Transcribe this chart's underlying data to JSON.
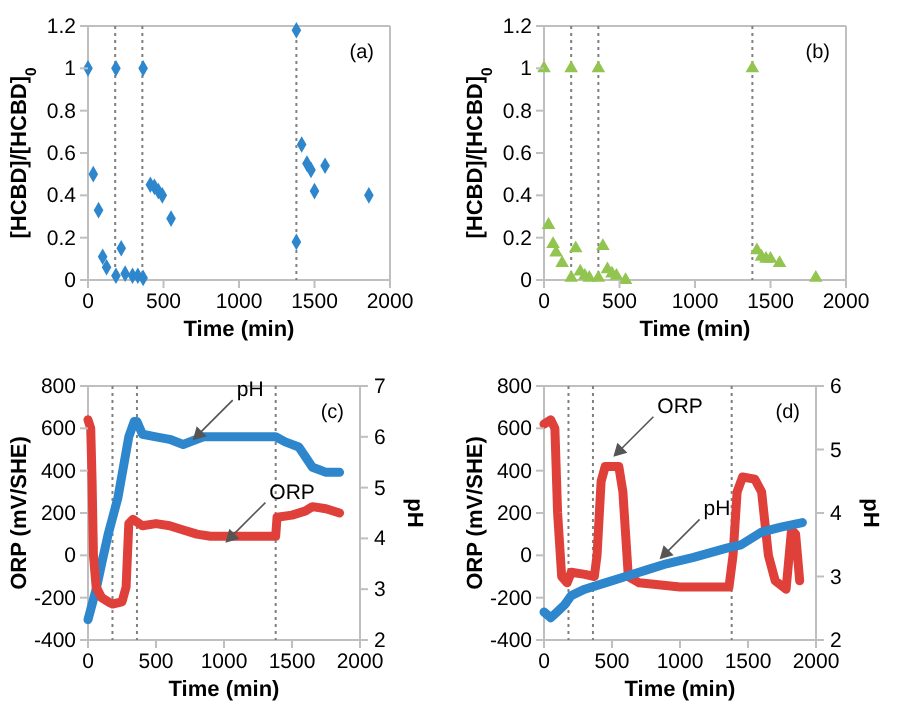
{
  "chart_data": [
    {
      "type": "scatter",
      "xlabel": "Time (min)",
      "ylabel": "[HCBD]/[HCBD]$_{0}$",
      "marker": "diamond",
      "xlim": [
        0,
        2000
      ],
      "xticks": [
        0,
        500,
        1000,
        1500,
        2000
      ],
      "ylim": [
        0,
        1.2
      ],
      "yticks": [
        0,
        0.2,
        0.4,
        0.6,
        0.8,
        1,
        1.2
      ],
      "ref_lines": [
        {
          "axis": "x",
          "value": 180,
          "color": "#808080",
          "line_style": "dotted"
        },
        {
          "axis": "x",
          "value": 360,
          "color": "#808080",
          "line_style": "dotted"
        },
        {
          "axis": "x",
          "value": 1380,
          "color": "#808080",
          "line_style": "dotted"
        }
      ],
      "annotations": [
        "(a)"
      ],
      "series": [
        {
          "color": "#2e86cc",
          "x": [
            0,
            35,
            70,
            97,
            123,
            185,
            185,
            220,
            246,
            295,
            330,
            365,
            365,
            413,
            440,
            466,
            492,
            550,
            1380,
            1380,
            1415,
            1450,
            1477,
            1500,
            1570,
            1860
          ],
          "values": [
            1,
            0.5,
            0.33,
            0.11,
            0.06,
            0.02,
            1,
            0.15,
            0.03,
            0.02,
            0.02,
            0.01,
            1,
            0.45,
            0.44,
            0.42,
            0.4,
            0.29,
            0.18,
            1.18,
            0.64,
            0.55,
            0.52,
            0.42,
            0.54,
            0.4
          ]
        }
      ]
    },
    {
      "type": "scatter",
      "xlabel": "Time (min)",
      "ylabel": "[HCBD]/[HCBD]$_{0}$",
      "marker": "triangle",
      "xlim": [
        0,
        2000
      ],
      "xticks": [
        0,
        500,
        1000,
        1500,
        2000
      ],
      "ylim": [
        0,
        1.2
      ],
      "yticks": [
        0,
        0.2,
        0.4,
        0.6,
        0.8,
        1,
        1.2
      ],
      "ref_lines": [
        {
          "axis": "x",
          "value": 180,
          "color": "#808080",
          "line_style": "dotted"
        },
        {
          "axis": "x",
          "value": 360,
          "color": "#808080",
          "line_style": "dotted"
        },
        {
          "axis": "x",
          "value": 1380,
          "color": "#808080",
          "line_style": "dotted"
        }
      ],
      "annotations": [
        "(b)"
      ],
      "series": [
        {
          "color": "#92c450",
          "x": [
            0,
            30,
            60,
            80,
            120,
            180,
            180,
            210,
            240,
            270,
            300,
            360,
            360,
            390,
            420,
            450,
            480,
            540,
            1380,
            1410,
            1440,
            1470,
            1500,
            1560,
            1800
          ],
          "values": [
            1,
            0.26,
            0.17,
            0.13,
            0.08,
            0.01,
            1,
            0.15,
            0.04,
            0.02,
            0.01,
            0.01,
            1,
            0.16,
            0.05,
            0.03,
            0.02,
            0,
            1,
            0.14,
            0.11,
            0.1,
            0.1,
            0.08,
            0.01
          ]
        }
      ]
    },
    {
      "type": "line",
      "xlabel": "Time (min)",
      "ylabel": "ORP (mV/SHE)",
      "y2label": "pH",
      "marker": "none",
      "line_style": "solid",
      "xlim": [
        0,
        2000
      ],
      "xticks": [
        0,
        500,
        1000,
        1500,
        2000
      ],
      "ylim": [
        -400,
        800
      ],
      "yticks": [
        -400,
        -200,
        0,
        200,
        400,
        600,
        800
      ],
      "y2lim": [
        2,
        7
      ],
      "y2ticks": [
        2,
        3,
        4,
        5,
        6,
        7
      ],
      "ref_lines": [
        {
          "axis": "x",
          "value": 180,
          "color": "#808080",
          "line_style": "dotted"
        },
        {
          "axis": "x",
          "value": 360,
          "color": "#808080",
          "line_style": "dotted"
        },
        {
          "axis": "x",
          "value": 1380,
          "color": "#808080",
          "line_style": "dotted"
        }
      ],
      "annotations": [
        "(c)",
        {
          "text": "pH",
          "x": 770,
          "y": 544
        },
        {
          "text": "ORP",
          "x": 1010,
          "y": 60
        }
      ],
      "series": [
        {
          "color": "#2e86cc",
          "axis": "y2",
          "x": [
            0,
            20,
            60,
            100,
            150,
            180,
            220,
            260,
            300,
            340,
            360,
            400,
            500,
            600,
            700,
            800,
            850,
            900,
            1000,
            1100,
            1200,
            1300,
            1380,
            1450,
            1550,
            1600,
            1650,
            1700,
            1750,
            1850
          ],
          "values": [
            2.4,
            2.6,
            3.0,
            3.5,
            4.1,
            4.4,
            4.8,
            5.4,
            6.0,
            6.3,
            6.3,
            6.05,
            6.0,
            5.95,
            5.85,
            5.95,
            6.0,
            6.0,
            6.0,
            6.0,
            6.0,
            6.0,
            6.0,
            5.9,
            5.8,
            5.6,
            5.4,
            5.35,
            5.3,
            5.3
          ]
        },
        {
          "color": "#e0403a",
          "x": [
            0,
            20,
            30,
            40,
            60,
            100,
            150,
            180,
            250,
            280,
            300,
            330,
            400,
            500,
            600,
            700,
            800,
            900,
            1000,
            1200,
            1380,
            1390,
            1500,
            1600,
            1650,
            1750,
            1850
          ],
          "values": [
            640,
            600,
            350,
            0,
            -150,
            -200,
            -220,
            -230,
            -220,
            -150,
            150,
            170,
            140,
            150,
            140,
            120,
            100,
            90,
            90,
            90,
            90,
            180,
            190,
            210,
            230,
            220,
            200
          ]
        }
      ]
    },
    {
      "type": "line",
      "xlabel": "Time (min)",
      "ylabel": "ORP (mV/SHE)",
      "y2label": "pH",
      "marker": "none",
      "line_style": "solid",
      "xlim": [
        0,
        2000
      ],
      "xticks": [
        0,
        500,
        1000,
        1500,
        2000
      ],
      "ylim": [
        -400,
        800
      ],
      "yticks": [
        -400,
        -200,
        0,
        200,
        400,
        600,
        800
      ],
      "y2lim": [
        2,
        6
      ],
      "y2ticks": [
        2,
        3,
        4,
        5,
        6
      ],
      "ref_lines": [
        {
          "axis": "x",
          "value": 180,
          "color": "#808080",
          "line_style": "dotted"
        },
        {
          "axis": "x",
          "value": 360,
          "color": "#808080",
          "line_style": "dotted"
        },
        {
          "axis": "x",
          "value": 1380,
          "color": "#808080",
          "line_style": "dotted"
        }
      ],
      "annotations": [
        "(d)",
        {
          "text": "ORP",
          "x": 510,
          "y": 466
        },
        {
          "text": "pH",
          "x": 850,
          "y": -19
        }
      ],
      "series": [
        {
          "color": "#e0403a",
          "x": [
            0,
            50,
            80,
            100,
            130,
            170,
            200,
            300,
            370,
            390,
            420,
            450,
            550,
            580,
            620,
            700,
            1000,
            1360,
            1390,
            1420,
            1460,
            1550,
            1600,
            1650,
            1700,
            1780,
            1820,
            1850,
            1880
          ],
          "values": [
            620,
            640,
            600,
            200,
            -100,
            -130,
            -80,
            -90,
            -100,
            0,
            350,
            420,
            420,
            300,
            -100,
            -130,
            -150,
            -150,
            0,
            300,
            370,
            360,
            300,
            0,
            -120,
            -160,
            120,
            100,
            -120
          ]
        },
        {
          "color": "#2e86cc",
          "axis": "y2",
          "x": [
            0,
            50,
            100,
            150,
            200,
            300,
            450,
            600,
            750,
            900,
            1100,
            1350,
            1450,
            1600,
            1750,
            1900
          ],
          "values": [
            2.44,
            2.35,
            2.45,
            2.55,
            2.7,
            2.8,
            2.9,
            3.0,
            3.1,
            3.2,
            3.3,
            3.45,
            3.5,
            3.7,
            3.78,
            3.85
          ]
        }
      ]
    }
  ]
}
